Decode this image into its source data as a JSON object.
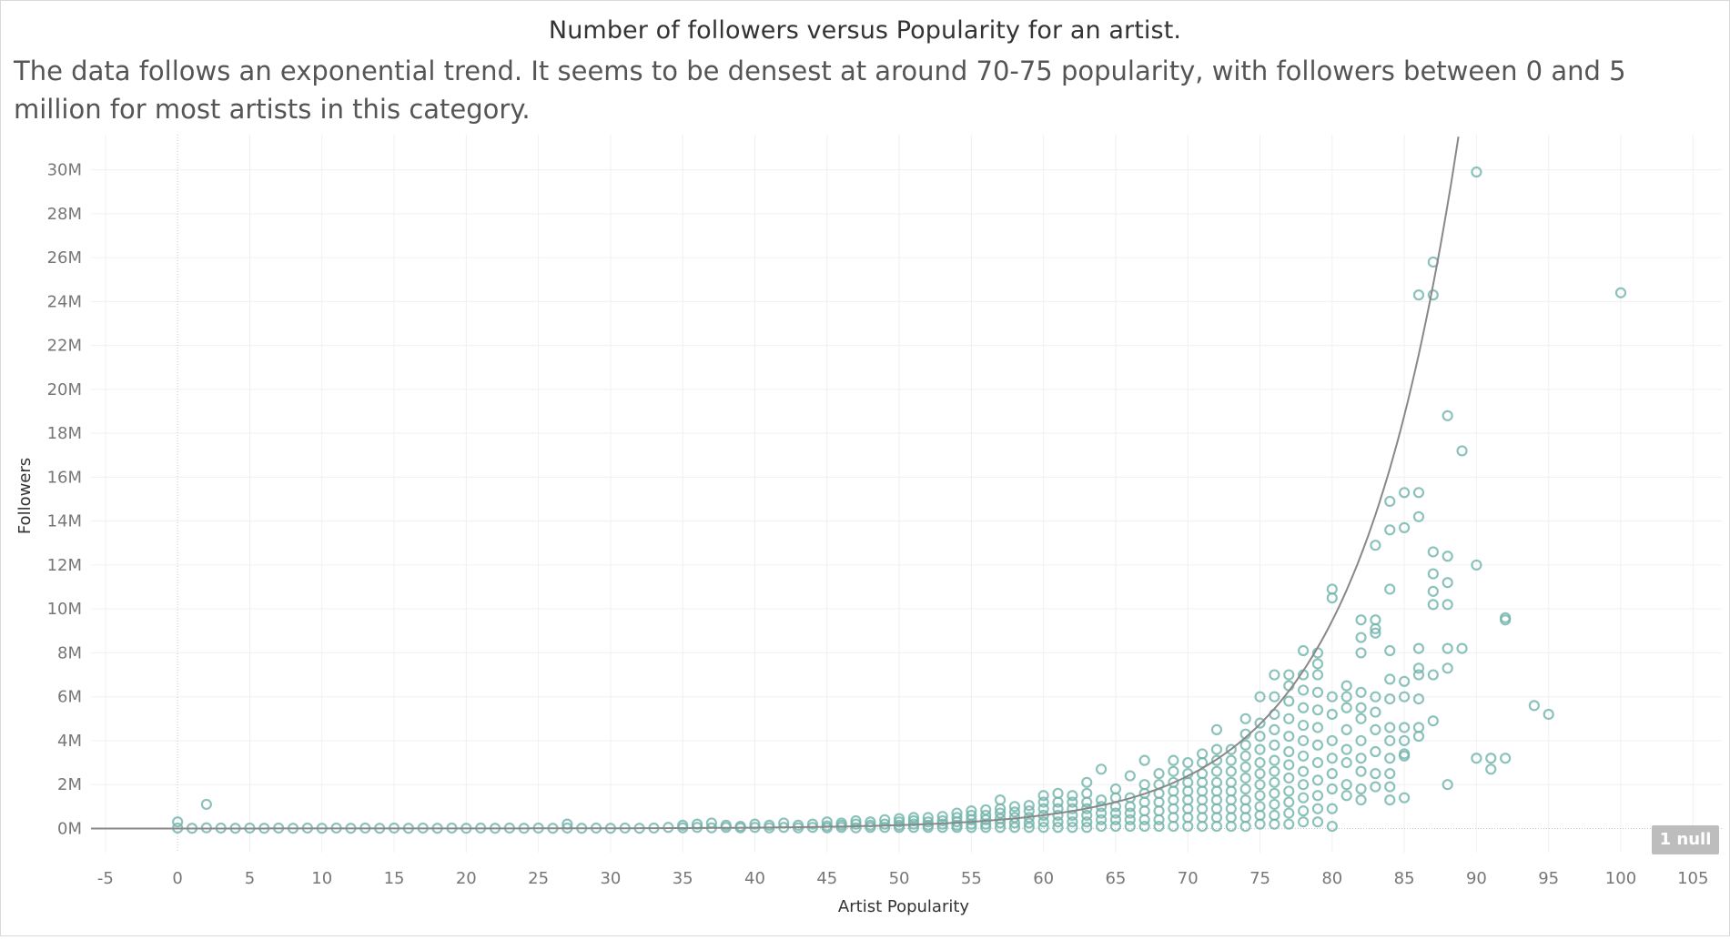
{
  "chart_data": {
    "type": "scatter",
    "title": "Number of followers versus Popularity for an artist.",
    "subtitle": "The data follows an exponential trend. It seems to be densest at around 70-75 popularity, with followers between 0 and 5 million for most artists in this category.",
    "xlabel": "Artist Popularity",
    "ylabel": "Followers",
    "xlim": [
      -6,
      107
    ],
    "ylim": [
      -1.1,
      31.6
    ],
    "x_ticks": [
      -5,
      0,
      5,
      10,
      15,
      20,
      25,
      30,
      35,
      40,
      45,
      50,
      55,
      60,
      65,
      70,
      75,
      80,
      85,
      90,
      95,
      100,
      105
    ],
    "y_ticks": [
      0,
      2,
      4,
      6,
      8,
      10,
      12,
      14,
      16,
      18,
      20,
      22,
      24,
      26,
      28,
      30
    ],
    "y_tick_labels": [
      "0M",
      "2M",
      "4M",
      "6M",
      "8M",
      "10M",
      "12M",
      "14M",
      "16M",
      "18M",
      "20M",
      "22M",
      "24M",
      "26M",
      "28M",
      "30M"
    ],
    "y_unit": "millions of followers",
    "grid": true,
    "marker": "hollow-circle",
    "marker_color": "#6fb3aa",
    "trend_line": {
      "type": "exponential",
      "color": "#888888",
      "a": 0.000158,
      "b": 0.1375
    },
    "null_indicator": "1 null",
    "points": [
      [
        0,
        0.3
      ],
      [
        0,
        0.02
      ],
      [
        1,
        0.01
      ],
      [
        2,
        0.03
      ],
      [
        2,
        1.1
      ],
      [
        3,
        0.02
      ],
      [
        4,
        0.01
      ],
      [
        5,
        0.02
      ],
      [
        6,
        0.01
      ],
      [
        7,
        0.02
      ],
      [
        8,
        0.01
      ],
      [
        9,
        0.02
      ],
      [
        10,
        0.01
      ],
      [
        11,
        0.02
      ],
      [
        12,
        0.01
      ],
      [
        13,
        0.02
      ],
      [
        14,
        0.01
      ],
      [
        15,
        0.02
      ],
      [
        16,
        0.01
      ],
      [
        17,
        0.02
      ],
      [
        18,
        0.01
      ],
      [
        19,
        0.02
      ],
      [
        20,
        0.01
      ],
      [
        21,
        0.02
      ],
      [
        22,
        0.01
      ],
      [
        23,
        0.02
      ],
      [
        24,
        0.01
      ],
      [
        25,
        0.02
      ],
      [
        26,
        0.01
      ],
      [
        27,
        0.02
      ],
      [
        27,
        0.2
      ],
      [
        28,
        0.01
      ],
      [
        29,
        0.02
      ],
      [
        30,
        0.01
      ],
      [
        31,
        0.02
      ],
      [
        32,
        0.01
      ],
      [
        33,
        0.02
      ],
      [
        34,
        0.05
      ],
      [
        35,
        0.03
      ],
      [
        35,
        0.15
      ],
      [
        36,
        0.05
      ],
      [
        36,
        0.2
      ],
      [
        37,
        0.03
      ],
      [
        37,
        0.25
      ],
      [
        38,
        0.05
      ],
      [
        38,
        0.15
      ],
      [
        39,
        0.03
      ],
      [
        39,
        0.1
      ],
      [
        40,
        0.05
      ],
      [
        40,
        0.2
      ],
      [
        41,
        0.03
      ],
      [
        41,
        0.15
      ],
      [
        42,
        0.05
      ],
      [
        42,
        0.25
      ],
      [
        43,
        0.03
      ],
      [
        43,
        0.15
      ],
      [
        44,
        0.05
      ],
      [
        44,
        0.2
      ],
      [
        45,
        0.03
      ],
      [
        45,
        0.12
      ],
      [
        45,
        0.3
      ],
      [
        46,
        0.05
      ],
      [
        46,
        0.15
      ],
      [
        46,
        0.25
      ],
      [
        47,
        0.03
      ],
      [
        47,
        0.2
      ],
      [
        47,
        0.35
      ],
      [
        48,
        0.05
      ],
      [
        48,
        0.15
      ],
      [
        48,
        0.3
      ],
      [
        49,
        0.05
      ],
      [
        49,
        0.2
      ],
      [
        49,
        0.4
      ],
      [
        50,
        0.05
      ],
      [
        50,
        0.15
      ],
      [
        50,
        0.3
      ],
      [
        50,
        0.45
      ],
      [
        51,
        0.05
      ],
      [
        51,
        0.2
      ],
      [
        51,
        0.35
      ],
      [
        51,
        0.5
      ],
      [
        52,
        0.05
      ],
      [
        52,
        0.15
      ],
      [
        52,
        0.3
      ],
      [
        52,
        0.5
      ],
      [
        53,
        0.05
      ],
      [
        53,
        0.2
      ],
      [
        53,
        0.35
      ],
      [
        53,
        0.55
      ],
      [
        54,
        0.05
      ],
      [
        54,
        0.15
      ],
      [
        54,
        0.3
      ],
      [
        54,
        0.5
      ],
      [
        54,
        0.7
      ],
      [
        55,
        0.05
      ],
      [
        55,
        0.2
      ],
      [
        55,
        0.4
      ],
      [
        55,
        0.6
      ],
      [
        55,
        0.8
      ],
      [
        56,
        0.05
      ],
      [
        56,
        0.2
      ],
      [
        56,
        0.4
      ],
      [
        56,
        0.6
      ],
      [
        56,
        0.85
      ],
      [
        57,
        0.05
      ],
      [
        57,
        0.25
      ],
      [
        57,
        0.45
      ],
      [
        57,
        0.7
      ],
      [
        57,
        0.9
      ],
      [
        57,
        1.3
      ],
      [
        58,
        0.05
      ],
      [
        58,
        0.25
      ],
      [
        58,
        0.5
      ],
      [
        58,
        0.75
      ],
      [
        58,
        1.0
      ],
      [
        59,
        0.05
      ],
      [
        59,
        0.25
      ],
      [
        59,
        0.5
      ],
      [
        59,
        0.8
      ],
      [
        59,
        1.05
      ],
      [
        60,
        0.05
      ],
      [
        60,
        0.3
      ],
      [
        60,
        0.6
      ],
      [
        60,
        0.9
      ],
      [
        60,
        1.2
      ],
      [
        60,
        1.5
      ],
      [
        61,
        0.05
      ],
      [
        61,
        0.3
      ],
      [
        61,
        0.6
      ],
      [
        61,
        0.9
      ],
      [
        61,
        1.2
      ],
      [
        61,
        1.6
      ],
      [
        62,
        0.05
      ],
      [
        62,
        0.3
      ],
      [
        62,
        0.6
      ],
      [
        62,
        0.9
      ],
      [
        62,
        1.2
      ],
      [
        62,
        1.5
      ],
      [
        63,
        0.05
      ],
      [
        63,
        0.3
      ],
      [
        63,
        0.6
      ],
      [
        63,
        0.9
      ],
      [
        63,
        1.2
      ],
      [
        63,
        1.6
      ],
      [
        63,
        2.1
      ],
      [
        64,
        0.1
      ],
      [
        64,
        0.4
      ],
      [
        64,
        0.7
      ],
      [
        64,
        1.0
      ],
      [
        64,
        1.3
      ],
      [
        64,
        2.7
      ],
      [
        65,
        0.1
      ],
      [
        65,
        0.4
      ],
      [
        65,
        0.7
      ],
      [
        65,
        1.0
      ],
      [
        65,
        1.4
      ],
      [
        65,
        1.8
      ],
      [
        66,
        0.1
      ],
      [
        66,
        0.4
      ],
      [
        66,
        0.7
      ],
      [
        66,
        1.0
      ],
      [
        66,
        1.4
      ],
      [
        66,
        2.4
      ],
      [
        67,
        0.1
      ],
      [
        67,
        0.4
      ],
      [
        67,
        0.8
      ],
      [
        67,
        1.2
      ],
      [
        67,
        1.6
      ],
      [
        67,
        2.0
      ],
      [
        67,
        3.1
      ],
      [
        68,
        0.1
      ],
      [
        68,
        0.4
      ],
      [
        68,
        0.8
      ],
      [
        68,
        1.2
      ],
      [
        68,
        1.6
      ],
      [
        68,
        2.0
      ],
      [
        68,
        2.5
      ],
      [
        69,
        0.1
      ],
      [
        69,
        0.5
      ],
      [
        69,
        0.9
      ],
      [
        69,
        1.3
      ],
      [
        69,
        1.7
      ],
      [
        69,
        2.1
      ],
      [
        69,
        2.6
      ],
      [
        69,
        3.1
      ],
      [
        70,
        0.1
      ],
      [
        70,
        0.5
      ],
      [
        70,
        0.9
      ],
      [
        70,
        1.3
      ],
      [
        70,
        1.7
      ],
      [
        70,
        2.1
      ],
      [
        70,
        2.5
      ],
      [
        70,
        3.0
      ],
      [
        71,
        0.1
      ],
      [
        71,
        0.5
      ],
      [
        71,
        0.9
      ],
      [
        71,
        1.3
      ],
      [
        71,
        1.7
      ],
      [
        71,
        2.1
      ],
      [
        71,
        2.5
      ],
      [
        71,
        3.0
      ],
      [
        71,
        3.4
      ],
      [
        72,
        0.1
      ],
      [
        72,
        0.5
      ],
      [
        72,
        0.9
      ],
      [
        72,
        1.3
      ],
      [
        72,
        1.7
      ],
      [
        72,
        2.1
      ],
      [
        72,
        2.6
      ],
      [
        72,
        3.1
      ],
      [
        72,
        3.6
      ],
      [
        72,
        4.5
      ],
      [
        73,
        0.1
      ],
      [
        73,
        0.5
      ],
      [
        73,
        0.9
      ],
      [
        73,
        1.3
      ],
      [
        73,
        1.7
      ],
      [
        73,
        2.1
      ],
      [
        73,
        2.6
      ],
      [
        73,
        3.1
      ],
      [
        73,
        3.6
      ],
      [
        74,
        0.1
      ],
      [
        74,
        0.5
      ],
      [
        74,
        0.9
      ],
      [
        74,
        1.3
      ],
      [
        74,
        1.8
      ],
      [
        74,
        2.3
      ],
      [
        74,
        2.8
      ],
      [
        74,
        3.3
      ],
      [
        74,
        3.8
      ],
      [
        74,
        4.3
      ],
      [
        74,
        5.0
      ],
      [
        75,
        0.2
      ],
      [
        75,
        0.6
      ],
      [
        75,
        1.0
      ],
      [
        75,
        1.5
      ],
      [
        75,
        2.0
      ],
      [
        75,
        2.5
      ],
      [
        75,
        3.0
      ],
      [
        75,
        3.6
      ],
      [
        75,
        4.2
      ],
      [
        75,
        4.8
      ],
      [
        75,
        6.0
      ],
      [
        76,
        0.2
      ],
      [
        76,
        0.6
      ],
      [
        76,
        1.1
      ],
      [
        76,
        1.6
      ],
      [
        76,
        2.1
      ],
      [
        76,
        2.6
      ],
      [
        76,
        3.1
      ],
      [
        76,
        3.8
      ],
      [
        76,
        4.5
      ],
      [
        76,
        5.2
      ],
      [
        76,
        6.0
      ],
      [
        76,
        7.0
      ],
      [
        77,
        0.2
      ],
      [
        77,
        0.7
      ],
      [
        77,
        1.2
      ],
      [
        77,
        1.7
      ],
      [
        77,
        2.3
      ],
      [
        77,
        2.9
      ],
      [
        77,
        3.5
      ],
      [
        77,
        4.2
      ],
      [
        77,
        5.0
      ],
      [
        77,
        5.8
      ],
      [
        77,
        6.5
      ],
      [
        77,
        7.0
      ],
      [
        78,
        0.3
      ],
      [
        78,
        0.8
      ],
      [
        78,
        1.4
      ],
      [
        78,
        2.0
      ],
      [
        78,
        2.6
      ],
      [
        78,
        3.3
      ],
      [
        78,
        4.0
      ],
      [
        78,
        4.7
      ],
      [
        78,
        5.5
      ],
      [
        78,
        6.3
      ],
      [
        78,
        7.0
      ],
      [
        78,
        8.1
      ],
      [
        79,
        0.3
      ],
      [
        79,
        0.9
      ],
      [
        79,
        1.5
      ],
      [
        79,
        2.2
      ],
      [
        79,
        3.0
      ],
      [
        79,
        3.8
      ],
      [
        79,
        4.6
      ],
      [
        79,
        5.4
      ],
      [
        79,
        6.2
      ],
      [
        79,
        7.0
      ],
      [
        79,
        7.5
      ],
      [
        79,
        8.0
      ],
      [
        80,
        0.1
      ],
      [
        80,
        0.9
      ],
      [
        80,
        1.8
      ],
      [
        80,
        2.5
      ],
      [
        80,
        3.2
      ],
      [
        80,
        4.0
      ],
      [
        80,
        5.2
      ],
      [
        80,
        6.0
      ],
      [
        80,
        10.5
      ],
      [
        80,
        10.9
      ],
      [
        81,
        1.5
      ],
      [
        81,
        2.0
      ],
      [
        81,
        3.0
      ],
      [
        81,
        3.6
      ],
      [
        81,
        4.5
      ],
      [
        81,
        5.5
      ],
      [
        81,
        6.0
      ],
      [
        81,
        6.5
      ],
      [
        82,
        1.3
      ],
      [
        82,
        1.8
      ],
      [
        82,
        2.6
      ],
      [
        82,
        3.2
      ],
      [
        82,
        4.0
      ],
      [
        82,
        5.0
      ],
      [
        82,
        5.5
      ],
      [
        82,
        6.2
      ],
      [
        82,
        8.0
      ],
      [
        82,
        8.7
      ],
      [
        82,
        9.5
      ],
      [
        83,
        1.9
      ],
      [
        83,
        2.5
      ],
      [
        83,
        3.5
      ],
      [
        83,
        4.5
      ],
      [
        83,
        5.3
      ],
      [
        83,
        6.0
      ],
      [
        83,
        8.9
      ],
      [
        83,
        9.1
      ],
      [
        83,
        9.5
      ],
      [
        83,
        12.9
      ],
      [
        84,
        1.3
      ],
      [
        84,
        1.9
      ],
      [
        84,
        2.5
      ],
      [
        84,
        3.2
      ],
      [
        84,
        4.0
      ],
      [
        84,
        4.6
      ],
      [
        84,
        5.9
      ],
      [
        84,
        6.8
      ],
      [
        84,
        8.1
      ],
      [
        84,
        10.9
      ],
      [
        84,
        13.6
      ],
      [
        84,
        14.9
      ],
      [
        85,
        1.4
      ],
      [
        85,
        3.3
      ],
      [
        85,
        3.4
      ],
      [
        85,
        4.0
      ],
      [
        85,
        4.6
      ],
      [
        85,
        6.0
      ],
      [
        85,
        6.7
      ],
      [
        85,
        13.7
      ],
      [
        85,
        15.3
      ],
      [
        86,
        4.2
      ],
      [
        86,
        4.6
      ],
      [
        86,
        5.9
      ],
      [
        86,
        7.0
      ],
      [
        86,
        7.3
      ],
      [
        86,
        8.2
      ],
      [
        86,
        14.2
      ],
      [
        86,
        15.3
      ],
      [
        86,
        24.3
      ],
      [
        87,
        4.9
      ],
      [
        87,
        7.0
      ],
      [
        87,
        10.2
      ],
      [
        87,
        10.8
      ],
      [
        87,
        11.6
      ],
      [
        87,
        12.6
      ],
      [
        87,
        24.3
      ],
      [
        87,
        25.8
      ],
      [
        88,
        2.0
      ],
      [
        88,
        7.3
      ],
      [
        88,
        8.2
      ],
      [
        88,
        10.2
      ],
      [
        88,
        11.2
      ],
      [
        88,
        12.4
      ],
      [
        88,
        18.8
      ],
      [
        89,
        8.2
      ],
      [
        89,
        17.2
      ],
      [
        90,
        3.2
      ],
      [
        90,
        12.0
      ],
      [
        90,
        29.9
      ],
      [
        91,
        2.7
      ],
      [
        91,
        3.2
      ],
      [
        92,
        3.2
      ],
      [
        92,
        9.5
      ],
      [
        92,
        9.6
      ],
      [
        94,
        5.6
      ],
      [
        95,
        5.2
      ],
      [
        100,
        24.4
      ]
    ]
  }
}
